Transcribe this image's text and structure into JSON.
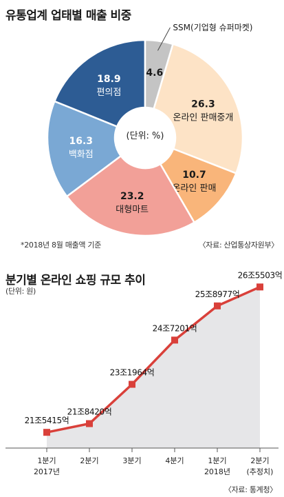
{
  "pie": {
    "title": "유통업계 업태별 매출 비중",
    "unit_label": "(단위: %)",
    "footnote": "*2018년 8월 매출액 기준",
    "source": "〈자료: 산업통상자원부〉",
    "chart_data": {
      "type": "pie",
      "title": "유통업계 업태별 매출 비중",
      "slices": [
        {
          "label": "온라인 판매중개",
          "value": 26.3,
          "color": "#fde3c6"
        },
        {
          "label": "온라인 판매",
          "value": 10.7,
          "color": "#f9b57a"
        },
        {
          "label": "대형마트",
          "value": 23.2,
          "color": "#f2a098"
        },
        {
          "label": "백화점",
          "value": 16.3,
          "color": "#7aa8d4"
        },
        {
          "label": "편의점",
          "value": 18.9,
          "color": "#2d5c94"
        },
        {
          "label": "SSM(기업형 슈퍼마켓)",
          "value": 4.6,
          "color": "#c4c4c4"
        }
      ]
    }
  },
  "line": {
    "title": "분기별 온라인 쇼핑 규모 추이",
    "unit_label": "(단위: 원)",
    "source": "〈자료: 통계청〉",
    "chart_data": {
      "type": "line",
      "title": "분기별 온라인 쇼핑 규모 추이",
      "categories": [
        "1분기\n2017년",
        "2분기",
        "3분기",
        "4분기",
        "1분기\n2018년",
        "2분기\n(추정치)"
      ],
      "values": [
        215415,
        218420,
        231964,
        247201,
        258977,
        265503
      ],
      "data_labels": [
        "21조5415억",
        "21조8420억",
        "23조1964억",
        "24조7201억",
        "25조8977억",
        "26조5503억"
      ],
      "line_color": "#d9403a",
      "area_color": "#e6e6e8"
    }
  }
}
